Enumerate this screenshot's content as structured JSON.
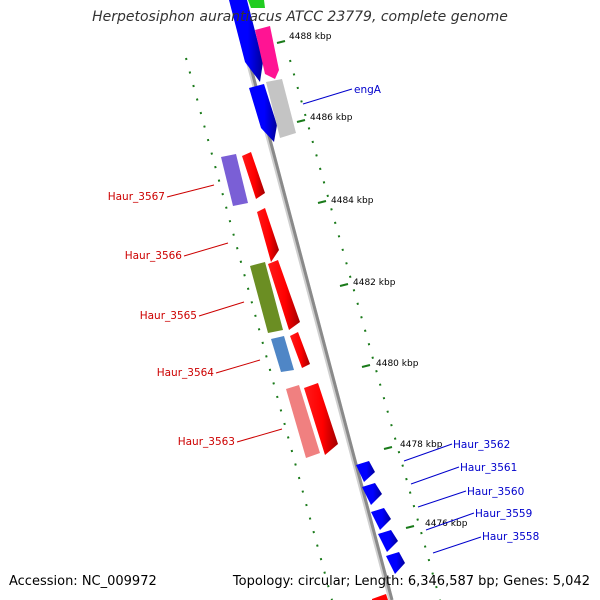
{
  "title": "Herpetosiphon aurantiacus ATCC 23779, complete genome",
  "footer": {
    "accession": "Accession: NC_009972",
    "summary": "Topology: circular; Length: 6,346,587 bp; Genes: 5,042"
  },
  "colors": {
    "backbone": "#8a8a8a",
    "tick": "#1a7a1a",
    "label_left": "#cc0000",
    "label_right": "#0000cc"
  },
  "ruler_ticks": [
    "4488 kbp",
    "4486 kbp",
    "4484 kbp",
    "4482 kbp",
    "4480 kbp",
    "4478 kbp",
    "4476 kbp"
  ],
  "left_labels": [
    "Haur_3567",
    "Haur_3566",
    "Haur_3565",
    "Haur_3564",
    "Haur_3563"
  ],
  "right_labels": [
    "engA",
    "Haur_3562",
    "Haur_3561",
    "Haur_3560",
    "Haur_3559",
    "Haur_3558"
  ]
}
